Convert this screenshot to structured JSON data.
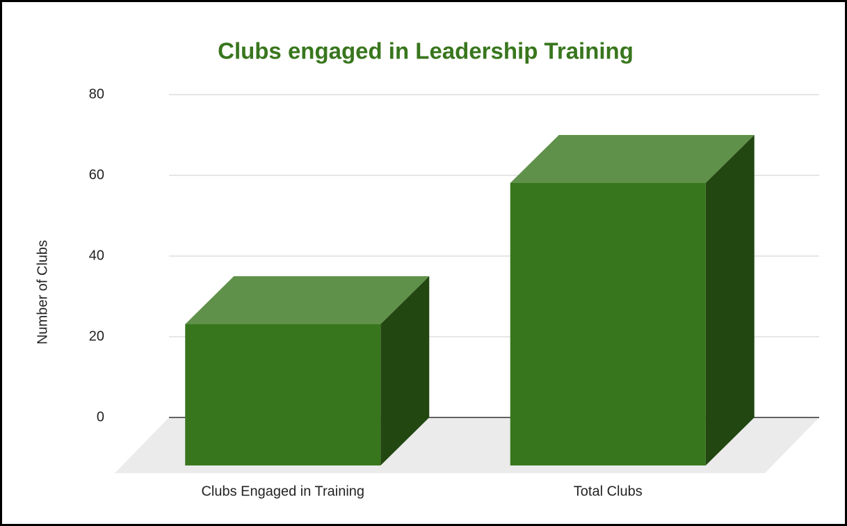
{
  "chart_data": {
    "type": "bar3d",
    "title": "Clubs engaged in Leadership Training",
    "y_label": "Number of Clubs",
    "categories": [
      "Clubs Engaged in Training",
      "Total Clubs"
    ],
    "values": [
      35,
      70
    ],
    "color": "#38761d",
    "ylim": [
      0,
      80
    ],
    "yticks": [
      0,
      20,
      40,
      60,
      80
    ],
    "grid": true
  }
}
